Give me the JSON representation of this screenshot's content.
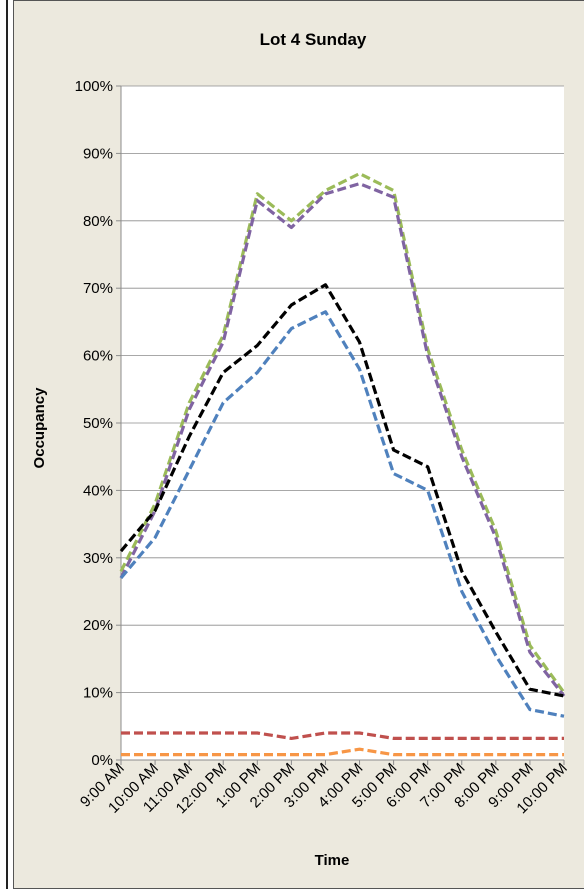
{
  "chart_data": {
    "type": "line",
    "title": "Lot 4 Sunday",
    "xlabel": "Time",
    "ylabel": "Occupancy",
    "ylim": [
      0,
      1
    ],
    "yticks": [
      "0%",
      "10%",
      "20%",
      "30%",
      "40%",
      "50%",
      "60%",
      "70%",
      "80%",
      "90%",
      "100%"
    ],
    "categories": [
      "9:00 AM",
      "10:00 AM",
      "11:00 AM",
      "12:00 PM",
      "1:00 PM",
      "2:00 PM",
      "3:00 PM",
      "4:00 PM",
      "5:00 PM",
      "6:00 PM",
      "7:00 PM",
      "8:00 PM",
      "9:00 PM",
      "10:00 PM"
    ],
    "grid": true,
    "line_style": "dashed",
    "series": [
      {
        "color": "#9bbb59",
        "values": [
          0.28,
          0.38,
          0.53,
          0.63,
          0.84,
          0.8,
          0.845,
          0.87,
          0.845,
          0.61,
          0.46,
          0.34,
          0.17,
          0.1
        ]
      },
      {
        "color": "#8064a2",
        "values": [
          0.27,
          0.37,
          0.52,
          0.62,
          0.83,
          0.79,
          0.84,
          0.855,
          0.835,
          0.6,
          0.45,
          0.33,
          0.16,
          0.095
        ]
      },
      {
        "color": "#000000",
        "values": [
          0.31,
          0.37,
          0.48,
          0.575,
          0.615,
          0.675,
          0.705,
          0.62,
          0.46,
          0.435,
          0.28,
          0.19,
          0.105,
          0.095
        ]
      },
      {
        "color": "#4f81bd",
        "values": [
          0.27,
          0.33,
          0.43,
          0.53,
          0.575,
          0.64,
          0.665,
          0.58,
          0.425,
          0.4,
          0.25,
          0.155,
          0.075,
          0.065
        ]
      },
      {
        "color": "#c0504d",
        "values": [
          0.04,
          0.04,
          0.04,
          0.04,
          0.04,
          0.032,
          0.04,
          0.04,
          0.032,
          0.032,
          0.032,
          0.032,
          0.032,
          0.032
        ]
      },
      {
        "color": "#f79646",
        "values": [
          0.008,
          0.008,
          0.008,
          0.008,
          0.008,
          0.008,
          0.008,
          0.016,
          0.008,
          0.008,
          0.008,
          0.008,
          0.008,
          0.008
        ]
      }
    ]
  }
}
